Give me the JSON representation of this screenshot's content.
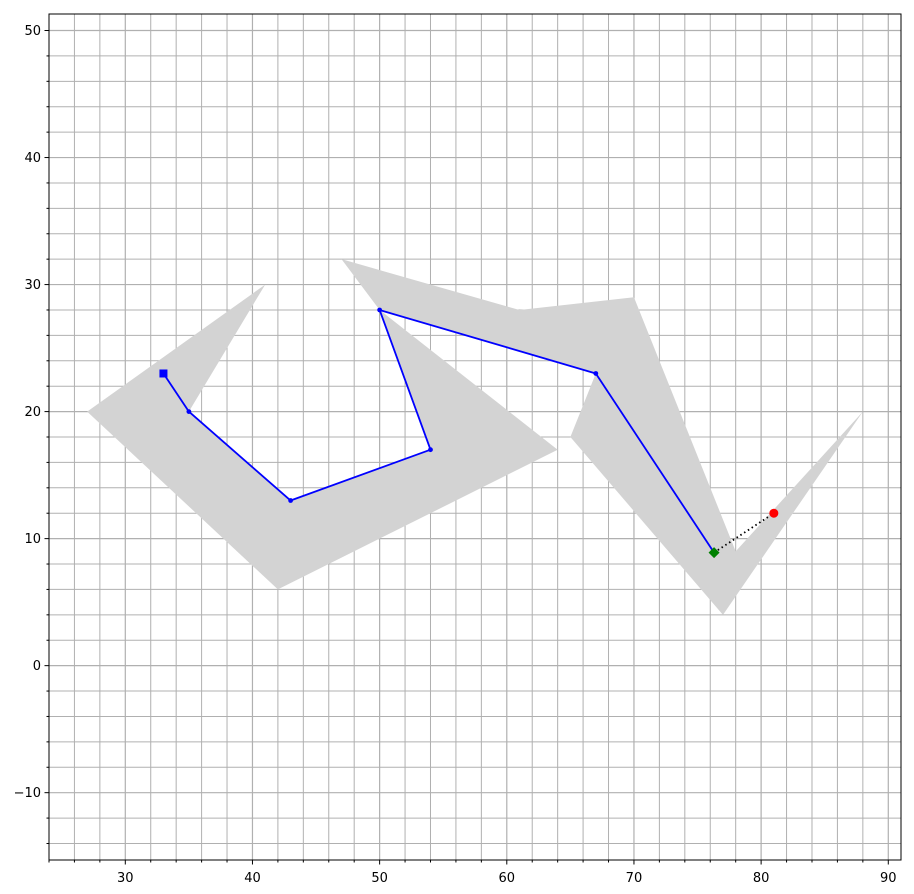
{
  "chart_data": {
    "type": "scatter",
    "xlim": [
      24,
      91
    ],
    "ylim": [
      -15.3,
      51.3
    ],
    "grid": true,
    "minor_grid": true,
    "x_ticks": [
      30,
      40,
      50,
      60,
      70,
      80,
      90
    ],
    "y_ticks": [
      -10,
      0,
      10,
      20,
      30,
      40,
      50
    ],
    "x_tick_labels": [
      "30",
      "40",
      "50",
      "60",
      "70",
      "80",
      "90"
    ],
    "y_tick_labels": [
      "−10",
      "0",
      "10",
      "20",
      "30",
      "40",
      "50"
    ],
    "obstacles": [
      {
        "color": "#d3d3d3",
        "points": [
          [
            27,
            20
          ],
          [
            41,
            30
          ],
          [
            35,
            20
          ],
          [
            43,
            13
          ],
          [
            54,
            17
          ],
          [
            50,
            28
          ],
          [
            64,
            17
          ],
          [
            42,
            6
          ]
        ]
      },
      {
        "color": "#d3d3d3",
        "points": [
          [
            47,
            32
          ],
          [
            61,
            28
          ],
          [
            70,
            29
          ],
          [
            78,
            9
          ],
          [
            88,
            20
          ],
          [
            77,
            4
          ],
          [
            65,
            18
          ],
          [
            67,
            23
          ],
          [
            50,
            28
          ]
        ]
      }
    ],
    "path": {
      "color": "#0000ff",
      "points": [
        [
          33,
          23
        ],
        [
          35,
          20
        ],
        [
          43,
          13
        ],
        [
          54,
          17
        ],
        [
          50,
          28
        ],
        [
          67,
          23
        ],
        [
          76.3,
          8.9
        ]
      ]
    },
    "start": {
      "x": 33,
      "y": 23,
      "color": "#0000ff",
      "marker": "square"
    },
    "end": {
      "x": 76.3,
      "y": 8.9,
      "color": "#008000",
      "marker": "diamond"
    },
    "goal": {
      "x": 81,
      "y": 12,
      "color": "#ff0000",
      "marker": "circle"
    },
    "goal_link": {
      "from": [
        76.3,
        8.9
      ],
      "to": [
        81,
        12
      ],
      "color": "#000000",
      "style": "dotted"
    }
  }
}
